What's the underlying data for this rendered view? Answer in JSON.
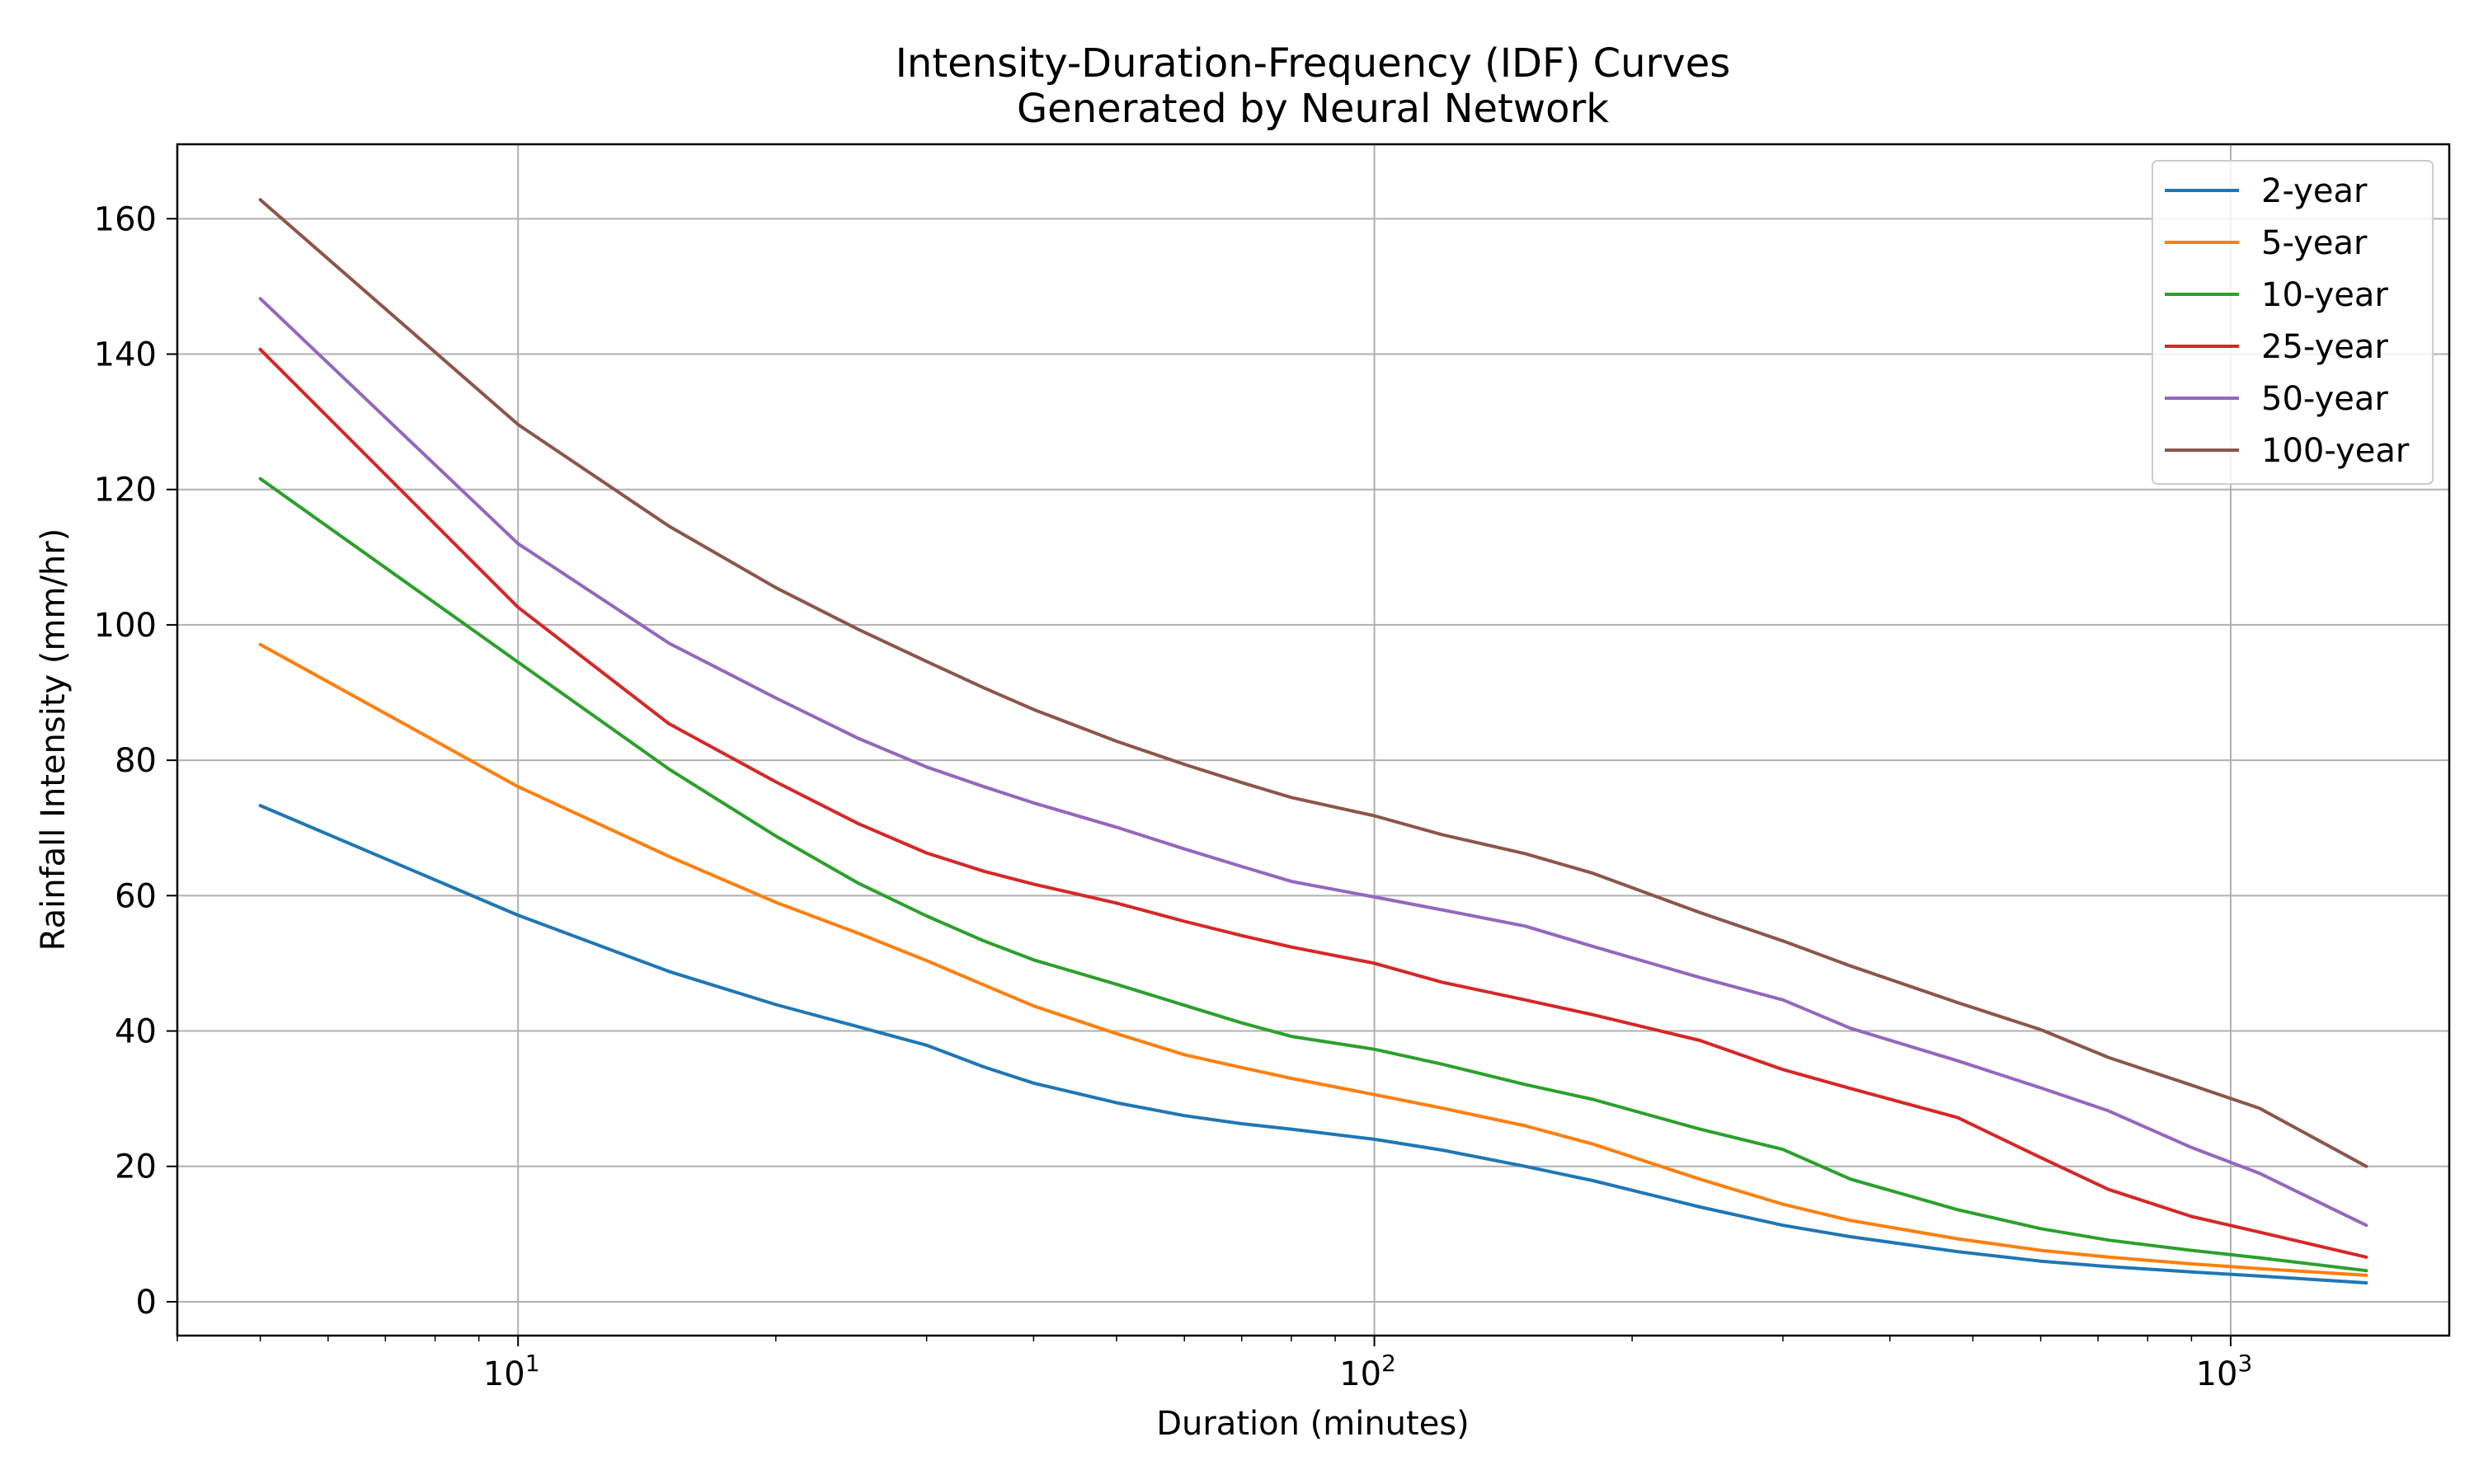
{
  "chart_data": {
    "type": "line",
    "title": "Intensity-Duration-Frequency (IDF) Curves",
    "subtitle": "Generated by Neural Network",
    "xlabel": "Duration (minutes)",
    "ylabel": "Rainfall Intensity (mm/hr)",
    "x_scale": "log",
    "xlim": [
      4,
      1800
    ],
    "ylim": [
      -5,
      171
    ],
    "grid": true,
    "legend_position": "top-right",
    "x_ticks": [
      {
        "value": 10,
        "base": "10",
        "exp": "1"
      },
      {
        "value": 100,
        "base": "10",
        "exp": "2"
      },
      {
        "value": 1000,
        "base": "10",
        "exp": "3"
      }
    ],
    "y_ticks": [
      0,
      20,
      40,
      60,
      80,
      100,
      120,
      140,
      160
    ],
    "x": [
      5,
      10,
      15,
      20,
      25,
      30,
      35,
      40,
      50,
      60,
      70,
      80,
      100,
      120,
      150,
      180,
      240,
      300,
      360,
      480,
      600,
      720,
      900,
      1080,
      1440
    ],
    "series": [
      {
        "name": "2-year",
        "color": "#1f77b4",
        "values": [
          73.3,
          57.1,
          48.8,
          43.9,
          40.6,
          37.9,
          34.7,
          32.3,
          29.4,
          27.5,
          26.3,
          25.5,
          24.0,
          22.4,
          20.0,
          17.9,
          14.0,
          11.3,
          9.6,
          7.4,
          6.0,
          5.2,
          4.4,
          3.8,
          2.8
        ]
      },
      {
        "name": "5-year",
        "color": "#ff7f0e",
        "values": [
          97.1,
          76.1,
          65.8,
          59.0,
          54.4,
          50.4,
          46.8,
          43.7,
          39.6,
          36.5,
          34.6,
          33.0,
          30.6,
          28.6,
          26.0,
          23.3,
          18.1,
          14.4,
          12.0,
          9.3,
          7.6,
          6.6,
          5.6,
          4.9,
          3.9
        ]
      },
      {
        "name": "10-year",
        "color": "#2ca02c",
        "values": [
          121.6,
          94.5,
          78.7,
          68.8,
          61.8,
          57.0,
          53.3,
          50.5,
          46.9,
          43.8,
          41.2,
          39.2,
          37.3,
          35.1,
          32.1,
          29.9,
          25.5,
          22.5,
          18.1,
          13.6,
          10.8,
          9.1,
          7.6,
          6.5,
          4.6
        ]
      },
      {
        "name": "25-year",
        "color": "#d62728",
        "values": [
          140.7,
          102.6,
          85.4,
          76.8,
          70.6,
          66.3,
          63.6,
          61.7,
          58.9,
          56.2,
          54.1,
          52.4,
          50.0,
          47.2,
          44.6,
          42.4,
          38.6,
          34.3,
          31.5,
          27.2,
          21.3,
          16.6,
          12.6,
          10.3,
          6.6
        ]
      },
      {
        "name": "50-year",
        "color": "#9467bd",
        "values": [
          148.2,
          112.0,
          97.3,
          89.2,
          83.2,
          79.0,
          76.1,
          73.7,
          70.1,
          66.9,
          64.3,
          62.1,
          59.8,
          57.9,
          55.5,
          52.5,
          47.9,
          44.6,
          40.4,
          35.6,
          31.6,
          28.2,
          22.8,
          19.0,
          11.3
        ]
      },
      {
        "name": "100-year",
        "color": "#8c564b",
        "values": [
          162.8,
          129.6,
          114.6,
          105.5,
          99.3,
          94.6,
          90.7,
          87.5,
          82.8,
          79.4,
          76.7,
          74.5,
          71.8,
          69.0,
          66.2,
          63.3,
          57.5,
          53.3,
          49.6,
          44.2,
          40.2,
          36.1,
          32.0,
          28.6,
          20.0
        ]
      }
    ]
  }
}
